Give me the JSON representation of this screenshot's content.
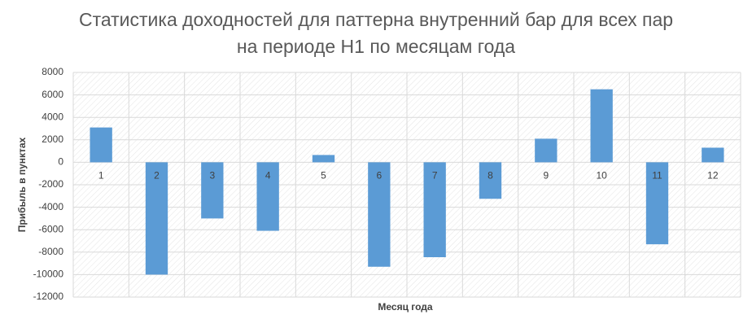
{
  "chart_data": {
    "type": "bar",
    "title": "Статистика доходностей для паттерна внутренний бар для всех пар на периоде H1 по месяцам года",
    "x_label": "Месяц года",
    "y_label": "Прибыль в пунктах",
    "categories": [
      "1",
      "2",
      "3",
      "4",
      "5",
      "6",
      "7",
      "8",
      "9",
      "10",
      "11",
      "12"
    ],
    "values": [
      3100,
      -10000,
      -5000,
      -6100,
      650,
      -9300,
      -8450,
      -3250,
      2100,
      6500,
      -7300,
      1300
    ],
    "color": "#5b9bd5",
    "ylim": [
      -12000,
      8000
    ],
    "yticks": [
      -12000,
      -10000,
      -8000,
      -6000,
      -4000,
      -2000,
      0,
      2000,
      4000,
      6000,
      8000
    ],
    "grid": true
  }
}
